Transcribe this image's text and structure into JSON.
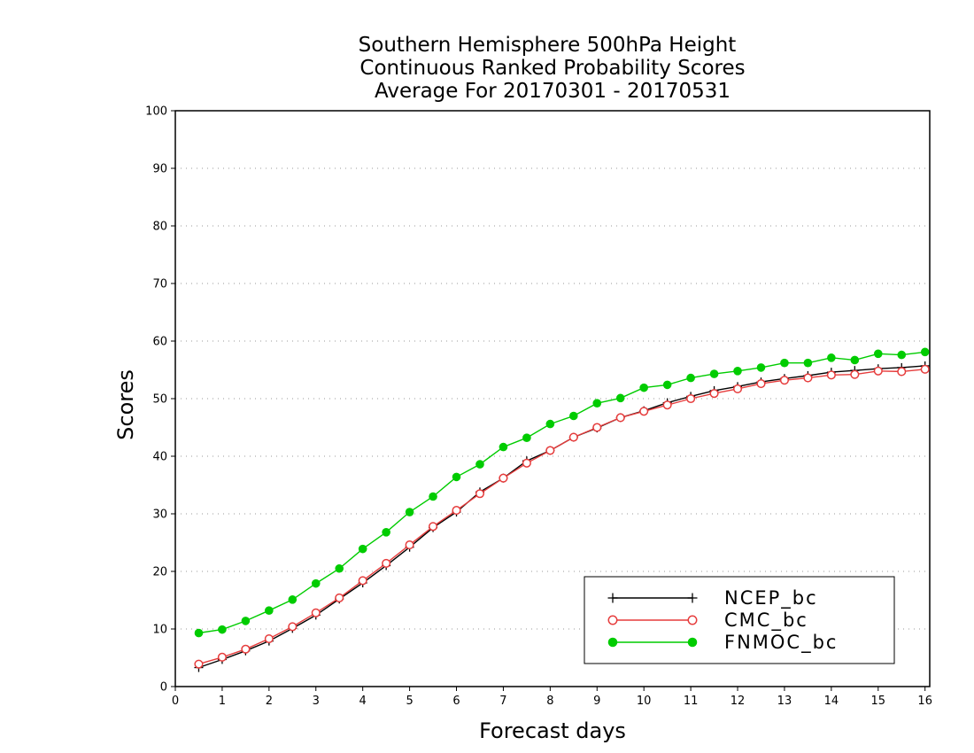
{
  "chart_data": {
    "type": "line",
    "title_lines": [
      "Southern Hemisphere 500hPa Height",
      "Continuous Ranked Probability Scores",
      "Average For 20170301 - 20170531"
    ],
    "xlabel": "Forecast days",
    "ylabel": "Scores",
    "xlim": [
      0,
      16.1
    ],
    "ylim": [
      0,
      100
    ],
    "xticks": [
      0,
      1,
      2,
      3,
      4,
      5,
      6,
      7,
      8,
      9,
      10,
      11,
      12,
      13,
      14,
      15,
      16
    ],
    "yticks": [
      0,
      10,
      20,
      30,
      40,
      50,
      60,
      70,
      80,
      90,
      100
    ],
    "grid": "horizontal-dotted",
    "legend_position": "bottom-right",
    "x": [
      0.5,
      1,
      1.5,
      2,
      2.5,
      3,
      3.5,
      4,
      4.5,
      5,
      5.5,
      6,
      6.5,
      7,
      7.5,
      8,
      8.5,
      9,
      9.5,
      10,
      10.5,
      11,
      11.5,
      12,
      12.5,
      13,
      13.5,
      14,
      14.5,
      15,
      15.5,
      16
    ],
    "series": [
      {
        "name": "NCEP_bc",
        "color": "#000000",
        "marker": "plus",
        "values": [
          3.3,
          4.7,
          6.2,
          7.9,
          10.1,
          12.4,
          15.2,
          18.0,
          21.0,
          24.2,
          27.6,
          30.3,
          33.8,
          36.2,
          39.2,
          41.0,
          43.3,
          44.9,
          46.7,
          47.9,
          49.3,
          50.4,
          51.4,
          52.1,
          52.9,
          53.5,
          54.0,
          54.6,
          54.9,
          55.2,
          55.4,
          55.7
        ]
      },
      {
        "name": "CMC_bc",
        "color": "#e63c3c",
        "marker": "open-circle",
        "values": [
          3.9,
          5.1,
          6.5,
          8.3,
          10.4,
          12.8,
          15.4,
          18.4,
          21.4,
          24.6,
          27.8,
          30.6,
          33.5,
          36.2,
          38.8,
          41.0,
          43.3,
          45.0,
          46.7,
          47.8,
          48.9,
          50.0,
          50.9,
          51.7,
          52.6,
          53.2,
          53.6,
          54.1,
          54.2,
          54.8,
          54.7,
          55.1
        ]
      },
      {
        "name": "FNMOC_bc",
        "color": "#00cc00",
        "marker": "filled-circle",
        "values": [
          9.3,
          9.9,
          11.4,
          13.2,
          15.1,
          17.9,
          20.5,
          23.9,
          26.8,
          30.3,
          33.0,
          36.4,
          38.6,
          41.6,
          43.2,
          45.6,
          47.0,
          49.2,
          50.1,
          51.9,
          52.4,
          53.6,
          54.3,
          54.8,
          55.4,
          56.2,
          56.2,
          57.1,
          56.7,
          57.8,
          57.6,
          58.1
        ]
      }
    ]
  }
}
